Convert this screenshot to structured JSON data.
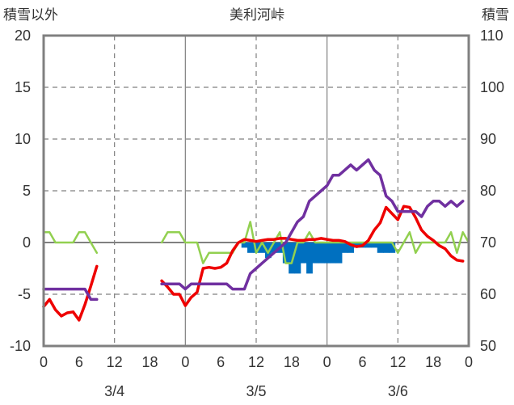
{
  "chart_data": {
    "type": "line",
    "title": "美利河峠",
    "y_left_label": "積雪以外",
    "y_right_label": "積雪",
    "y_left_ticks": [
      "20",
      "15",
      "10",
      "5",
      "0",
      "-5",
      "-10"
    ],
    "y_right_ticks": [
      "110",
      "100",
      "90",
      "80",
      "70",
      "60",
      "50"
    ],
    "x_hour_ticks": [
      "0",
      "6",
      "12",
      "18",
      "0",
      "6",
      "12",
      "18",
      "0",
      "6",
      "12",
      "18",
      "0"
    ],
    "x_date_labels": [
      "3/4",
      "3/5",
      "3/6"
    ],
    "ylim_left": [
      -10,
      20
    ],
    "ylim_right": [
      50,
      110
    ],
    "x_range_hours": [
      0,
      72
    ],
    "grid": true,
    "colors": {
      "red": "#ee0000",
      "purple": "#7030a0",
      "green": "#92d050",
      "blue": "#0070c0"
    },
    "series": [
      {
        "color_key": "red",
        "values": [
          [
            0,
            -6.2
          ],
          [
            1,
            -5.5
          ],
          [
            2,
            -6.5
          ],
          [
            3,
            -7.1
          ],
          [
            4,
            -6.8
          ],
          [
            5,
            -6.7
          ],
          [
            6,
            -7.5
          ],
          [
            7,
            -6.0
          ],
          [
            8,
            -4.2
          ],
          [
            9,
            -2.3
          ],
          null,
          [
            20,
            -3.7
          ],
          [
            21,
            -4.3
          ],
          [
            22,
            -5.0
          ],
          [
            23,
            -5.0
          ],
          [
            24,
            -6.1
          ],
          [
            25,
            -5.3
          ],
          [
            26,
            -4.8
          ],
          [
            27,
            -2.5
          ],
          [
            28,
            -2.4
          ],
          [
            29,
            -2.5
          ],
          [
            30,
            -2.4
          ],
          [
            31,
            -2.0
          ],
          [
            32,
            -0.8
          ],
          [
            33,
            0.0
          ],
          [
            34,
            0.3
          ],
          [
            35,
            0.2
          ],
          [
            36,
            0.1
          ],
          [
            37,
            0.2
          ],
          [
            38,
            0.3
          ],
          [
            39,
            0.3
          ],
          [
            40,
            0.4
          ],
          [
            41,
            0.4
          ],
          [
            42,
            0.3
          ],
          [
            43,
            0.2
          ],
          [
            44,
            0.2
          ],
          [
            45,
            0.3
          ],
          [
            46,
            0.3
          ],
          [
            47,
            0.4
          ],
          [
            48,
            0.3
          ],
          [
            49,
            0.2
          ],
          [
            50,
            0.2
          ],
          [
            51,
            0.1
          ],
          [
            52,
            -0.2
          ],
          [
            53,
            -0.4
          ],
          [
            54,
            -0.3
          ],
          [
            55,
            0.2
          ],
          [
            56,
            1.2
          ],
          [
            57,
            1.9
          ],
          [
            58,
            3.4
          ],
          [
            59,
            2.8
          ],
          [
            60,
            2.2
          ],
          [
            61,
            3.5
          ],
          [
            62,
            3.4
          ],
          [
            63,
            2.4
          ],
          [
            64,
            1.2
          ],
          [
            65,
            0.6
          ],
          [
            66,
            0.2
          ],
          [
            67,
            -0.3
          ],
          [
            68,
            -0.6
          ],
          [
            69,
            -1.3
          ],
          [
            70,
            -1.7
          ],
          [
            71,
            -1.8
          ]
        ]
      },
      {
        "color_key": "purple",
        "axis": "right",
        "values": [
          [
            0,
            61
          ],
          [
            1,
            61
          ],
          [
            2,
            61
          ],
          [
            3,
            61
          ],
          [
            4,
            61
          ],
          [
            5,
            61
          ],
          [
            6,
            61
          ],
          [
            7,
            61
          ],
          [
            8,
            59
          ],
          [
            9,
            59
          ],
          null,
          [
            20,
            62
          ],
          [
            21,
            62
          ],
          [
            22,
            62
          ],
          [
            23,
            62
          ],
          [
            24,
            61
          ],
          [
            25,
            62
          ],
          [
            26,
            62
          ],
          [
            27,
            62
          ],
          [
            28,
            62
          ],
          [
            29,
            62
          ],
          [
            30,
            62
          ],
          [
            31,
            62
          ],
          [
            32,
            61
          ],
          [
            33,
            61
          ],
          [
            34,
            61
          ],
          [
            35,
            64
          ],
          [
            36,
            65
          ],
          [
            37,
            66
          ],
          [
            38,
            67
          ],
          [
            39,
            68
          ],
          [
            40,
            69
          ],
          [
            41,
            70
          ],
          [
            42,
            72
          ],
          [
            43,
            74
          ],
          [
            44,
            75
          ],
          [
            45,
            78
          ],
          [
            46,
            79
          ],
          [
            47,
            80
          ],
          [
            48,
            81
          ],
          [
            49,
            83
          ],
          [
            50,
            83
          ],
          [
            51,
            84
          ],
          [
            52,
            85
          ],
          [
            53,
            84
          ],
          [
            54,
            85
          ],
          [
            55,
            86
          ],
          [
            56,
            84
          ],
          [
            57,
            83
          ],
          [
            58,
            79
          ],
          [
            59,
            78
          ],
          [
            60,
            76
          ],
          [
            61,
            76
          ],
          [
            62,
            76
          ],
          [
            63,
            76
          ],
          [
            64,
            75
          ],
          [
            65,
            77
          ],
          [
            66,
            78
          ],
          [
            67,
            78
          ],
          [
            68,
            77
          ],
          [
            69,
            78
          ],
          [
            70,
            77
          ],
          [
            71,
            78
          ]
        ]
      },
      {
        "color_key": "green",
        "values": [
          [
            0,
            1.0
          ],
          [
            1,
            1.0
          ],
          [
            2,
            0.0
          ],
          [
            3,
            0.0
          ],
          [
            4,
            0.0
          ],
          [
            5,
            0.0
          ],
          [
            6,
            1.0
          ],
          [
            7,
            1.0
          ],
          [
            8,
            0.0
          ],
          [
            9,
            -1.0
          ],
          null,
          [
            20,
            0.0
          ],
          [
            21,
            1.0
          ],
          [
            22,
            1.0
          ],
          [
            23,
            1.0
          ],
          [
            24,
            0.0
          ],
          [
            25,
            0.0
          ],
          [
            26,
            0.0
          ],
          [
            27,
            -2.0
          ],
          [
            28,
            -1.0
          ],
          [
            29,
            -1.0
          ],
          [
            30,
            -1.0
          ],
          [
            31,
            -1.0
          ],
          [
            32,
            -1.0
          ],
          [
            33,
            0.0
          ],
          [
            34,
            0.0
          ],
          [
            35,
            2.0
          ],
          [
            36,
            -1.0
          ],
          [
            37,
            0.0
          ],
          [
            38,
            -1.0
          ],
          [
            39,
            0.0
          ],
          [
            40,
            1.0
          ],
          [
            41,
            -2.0
          ],
          [
            42,
            -2.0
          ],
          [
            43,
            0.0
          ],
          [
            44,
            0.0
          ],
          [
            45,
            1.0
          ],
          [
            46,
            0.0
          ],
          [
            47,
            0.0
          ],
          [
            48,
            0.0
          ],
          [
            49,
            0.0
          ],
          [
            50,
            0.0
          ],
          [
            51,
            0.0
          ],
          [
            52,
            0.0
          ],
          [
            53,
            0.0
          ],
          [
            54,
            0.0
          ],
          [
            55,
            0.0
          ],
          [
            56,
            0.0
          ],
          [
            57,
            0.0
          ],
          [
            58,
            0.0
          ],
          [
            59,
            0.0
          ],
          [
            60,
            -1.0
          ],
          [
            61,
            0.0
          ],
          [
            62,
            1.0
          ],
          [
            63,
            -1.0
          ],
          [
            64,
            0.0
          ],
          [
            65,
            0.0
          ],
          [
            66,
            0.0
          ],
          [
            67,
            0.0
          ],
          [
            68,
            0.0
          ],
          [
            69,
            1.0
          ],
          [
            70,
            -1.0
          ],
          [
            71,
            1.0
          ],
          [
            72,
            0.0
          ]
        ]
      }
    ],
    "bars": {
      "color_key": "blue",
      "values": [
        [
          34,
          -0.5
        ],
        [
          35,
          -1.0
        ],
        [
          36,
          -1.0
        ],
        [
          37,
          -1.0
        ],
        [
          38,
          -1.5
        ],
        [
          39,
          -1.0
        ],
        [
          40,
          -1.0
        ],
        [
          41,
          -2.0
        ],
        [
          42,
          -3.0
        ],
        [
          43,
          -3.0
        ],
        [
          44,
          -2.0
        ],
        [
          45,
          -3.0
        ],
        [
          46,
          -2.0
        ],
        [
          47,
          -2.0
        ],
        [
          48,
          -2.0
        ],
        [
          49,
          -2.0
        ],
        [
          50,
          -2.0
        ],
        [
          51,
          -1.0
        ],
        [
          52,
          -1.0
        ],
        [
          53,
          -0.5
        ],
        [
          54,
          -0.5
        ],
        [
          55,
          -0.5
        ],
        [
          56,
          -0.5
        ],
        [
          57,
          -1.0
        ],
        [
          58,
          -1.0
        ],
        [
          59,
          -1.0
        ]
      ]
    }
  }
}
